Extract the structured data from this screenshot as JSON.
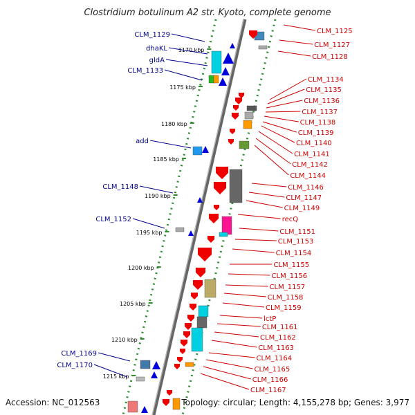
{
  "title": "Clostridium botulinum A2 str. Kyoto, complete genome",
  "footer": {
    "accession": "Accession: NC_012563",
    "topology": "Topology: circular; Length: 4,155,278 bp; Genes: 3,977"
  },
  "colors": {
    "left_label": "#00008b",
    "right_label": "#cc0000",
    "backbone": "#808080",
    "track_dots": "#2e8b2e",
    "forward_gene": "#0000dd",
    "reverse_gene": "#ee0000"
  },
  "kbp_ticks": [
    "1170 kbp",
    "1175 kbp",
    "1180 kbp",
    "1185 kbp",
    "1190 kbp",
    "1195 kbp",
    "1200 kbp",
    "1205 kbp",
    "1210 kbp",
    "1215 kbp"
  ],
  "left_labels": [
    "CLM_1129",
    "dhaKL",
    "gldA",
    "CLM_1133",
    "add",
    "CLM_1148",
    "CLM_1152",
    "CLM_1169",
    "CLM_1170"
  ],
  "right_labels": [
    "CLM_1125",
    "CLM_1127",
    "CLM_1128",
    "CLM_1134",
    "CLM_1135",
    "CLM_1136",
    "CLM_1137",
    "CLM_1138",
    "CLM_1139",
    "CLM_1140",
    "CLM_1141",
    "CLM_1142",
    "CLM_1144",
    "CLM_1146",
    "CLM_1147",
    "CLM_1149",
    "recQ",
    "CLM_1151",
    "CLM_1153",
    "CLM_1154",
    "CLM_1155",
    "CLM_1156",
    "CLM_1157",
    "CLM_1158",
    "CLM_1159",
    "lctP",
    "CLM_1161",
    "CLM_1162",
    "CLM_1163",
    "CLM_1164",
    "CLM_1165",
    "CLM_1166",
    "CLM_1167"
  ]
}
